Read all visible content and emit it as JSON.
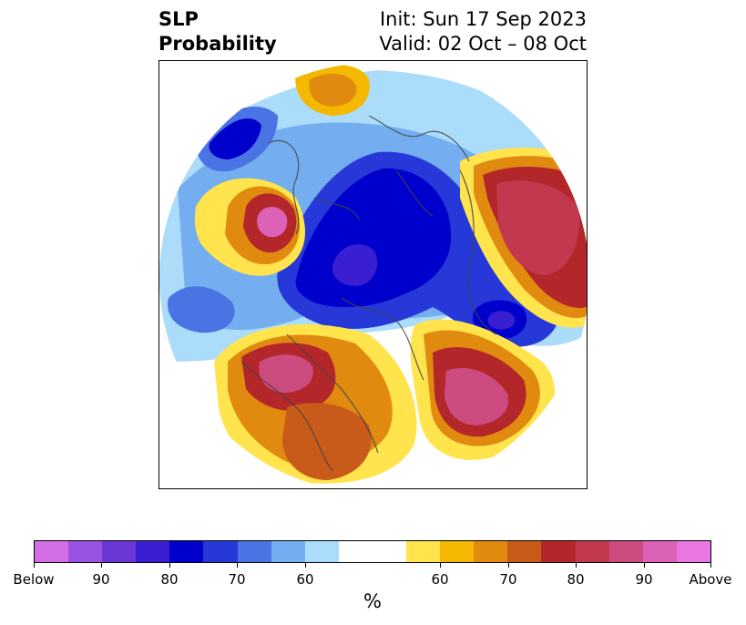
{
  "title": {
    "left_line1": "SLP",
    "left_line2": "Probability",
    "right_line1": "Init: Sun 17 Sep 2023",
    "right_line2": "Valid: 02 Oct – 08 Oct"
  },
  "colorbar": {
    "label": "%",
    "colors": [
      "#d36ee6",
      "#9a52e0",
      "#6a37d6",
      "#3a1fd2",
      "#0000cd",
      "#2638d8",
      "#4a74e3",
      "#74aef0",
      "#abdcfa",
      "#ffffff",
      "#ffffff",
      "#ffe44d",
      "#f5b800",
      "#e08a10",
      "#c85a1a",
      "#b3262a",
      "#c2384f",
      "#cc4c80",
      "#dc62b8",
      "#e877e2"
    ],
    "tick_labels": [
      "Below",
      "90",
      "80",
      "70",
      "60",
      "60",
      "70",
      "80",
      "90",
      "Above"
    ]
  },
  "map": {
    "projection": "north-polar-stereographic",
    "features": [
      {
        "name": "below-normal-arctic",
        "category": "below",
        "level": 80
      },
      {
        "name": "below-normal-north-pacific-west",
        "category": "below",
        "level": 80
      },
      {
        "name": "below-normal-north-atlantic",
        "category": "below",
        "level": 80
      },
      {
        "name": "below-normal-central-pacific",
        "category": "below",
        "level": 60
      },
      {
        "name": "above-normal-western-north-america",
        "category": "above",
        "level": 80
      },
      {
        "name": "above-normal-north-atlantic",
        "category": "above",
        "level": 85
      },
      {
        "name": "above-normal-europe",
        "category": "above",
        "level": 85
      },
      {
        "name": "above-normal-east-asia",
        "category": "above",
        "level": 85
      },
      {
        "name": "above-normal-scandinavia",
        "category": "above",
        "level": 60
      }
    ]
  }
}
